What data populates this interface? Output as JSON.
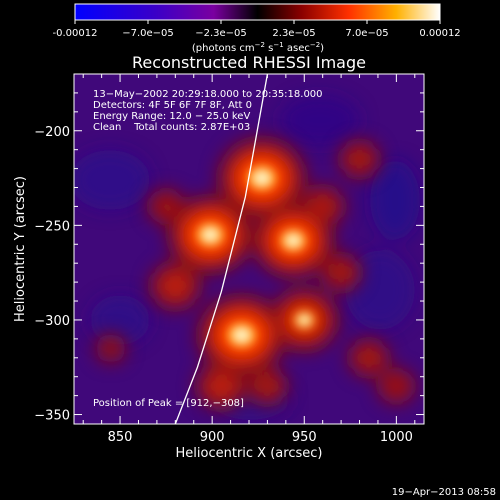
{
  "chart_data": {
    "type": "heatmap",
    "title": "Reconstructed RHESSI Image",
    "xlabel": "Heliocentric X (arcsec)",
    "ylabel": "Heliocentric Y (arcsec)",
    "xlim": [
      825,
      1015
    ],
    "ylim": [
      -355,
      -170
    ],
    "x_ticks": [
      "850",
      "900",
      "950",
      "1000"
    ],
    "y_ticks": [
      "-200",
      "-250",
      "-300",
      "-350"
    ],
    "colorbar": {
      "ticks": [
        "-0.00012",
        "−7.0e−05",
        "−2.3e−05",
        "2.3e−05",
        "7.0e−05",
        "0.00012"
      ],
      "unit_label": "(photons cm",
      "unit_sup1": "−2",
      "unit_mid": " s",
      "unit_sup2": "−1",
      "unit_end": " asec",
      "unit_sup3": "−2",
      "unit_close": ")",
      "range": [
        -0.00012,
        0.00012
      ]
    },
    "info_lines": [
      "13−May−2002 20:29:18.000 to 20:35:18.000",
      "Detectors: 4F 5F 6F 7F 8F, Att 0",
      "Energy Range: 12.0 − 25.0 keV",
      "Clean    Total counts: 2.87E+03"
    ],
    "peak_label": "Position of Peak = [912,−308]",
    "peak": [
      912,
      -308
    ],
    "sources": [
      {
        "x": 927,
        "y": -225,
        "intensity": 1.0
      },
      {
        "x": 899,
        "y": -255,
        "intensity": 0.95
      },
      {
        "x": 944,
        "y": -258,
        "intensity": 0.9
      },
      {
        "x": 916,
        "y": -308,
        "intensity": 1.0
      },
      {
        "x": 950,
        "y": -300,
        "intensity": 0.7
      },
      {
        "x": 880,
        "y": -282,
        "intensity": 0.45
      },
      {
        "x": 905,
        "y": -335,
        "intensity": 0.45
      },
      {
        "x": 960,
        "y": -240,
        "intensity": 0.35
      },
      {
        "x": 970,
        "y": -275,
        "intensity": 0.3
      },
      {
        "x": 980,
        "y": -215,
        "intensity": 0.3
      },
      {
        "x": 875,
        "y": -240,
        "intensity": 0.25
      },
      {
        "x": 930,
        "y": -335,
        "intensity": 0.3
      },
      {
        "x": 1000,
        "y": -335,
        "intensity": 0.25
      },
      {
        "x": 985,
        "y": -320,
        "intensity": 0.3
      },
      {
        "x": 845,
        "y": -315,
        "intensity": 0.15
      }
    ],
    "limb_curve": [
      [
        930,
        -170
      ],
      [
        918,
        -235
      ],
      [
        905,
        -285
      ],
      [
        892,
        -325
      ],
      [
        880,
        -355
      ]
    ]
  },
  "footer": {
    "timestamp": "19−Apr−2013 08:58"
  }
}
